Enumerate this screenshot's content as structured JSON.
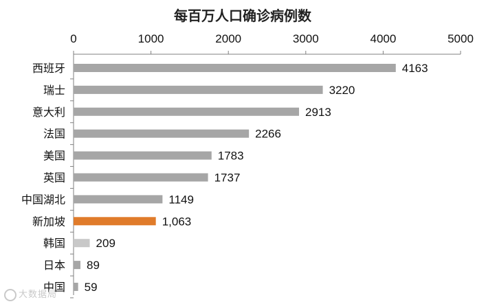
{
  "chart_data": {
    "type": "bar",
    "orientation": "horizontal",
    "title": "每百万人口确诊病例数",
    "categories": [
      "西班牙",
      "瑞士",
      "意大利",
      "法国",
      "美国",
      "英国",
      "中国湖北",
      "新加坡",
      "韩国",
      "日本",
      "中国"
    ],
    "values": [
      4163,
      3220,
      2913,
      2266,
      1783,
      1737,
      1149,
      1063,
      209,
      89,
      59
    ],
    "value_labels": [
      "4163",
      "3220",
      "2913",
      "2266",
      "1783",
      "1737",
      "1149",
      "1,063",
      "209",
      "89",
      "59"
    ],
    "bar_colors": [
      "#a6a6a6",
      "#a6a6a6",
      "#a6a6a6",
      "#a6a6a6",
      "#a6a6a6",
      "#a6a6a6",
      "#a6a6a6",
      "#e07b2a",
      "#c8c8c8",
      "#a6a6a6",
      "#a6a6a6"
    ],
    "xlim": [
      0,
      5000
    ],
    "x_ticks": [
      0,
      1000,
      2000,
      3000,
      4000,
      5000
    ],
    "x_axis_position": "top",
    "grid": false,
    "legend": "none"
  },
  "watermark": {
    "text": "大数据局",
    "color": "#c9c9c9"
  }
}
